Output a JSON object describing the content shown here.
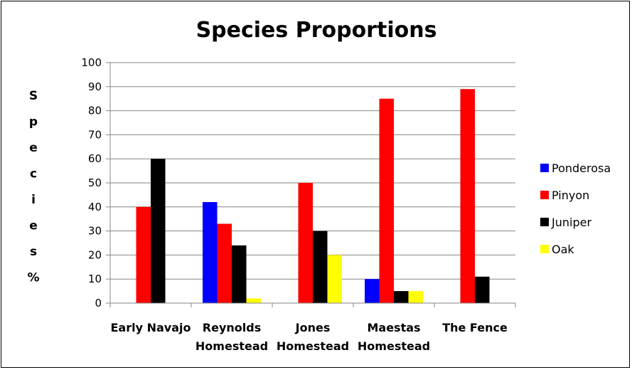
{
  "chart_data": {
    "type": "bar",
    "title": "Species Proportions",
    "ylabel_chars": [
      "S",
      "p",
      "e",
      "c",
      "i",
      "e",
      "s",
      "%"
    ],
    "categories": [
      [
        "Early Navajo"
      ],
      [
        "Reynolds",
        "Homestead"
      ],
      [
        "Jones",
        "Homestead"
      ],
      [
        "Maestas",
        "Homestead"
      ],
      [
        "The Fence"
      ]
    ],
    "series": [
      {
        "name": "Ponderosa",
        "color": "#0000FF",
        "values": [
          0,
          42,
          0,
          10,
          0
        ]
      },
      {
        "name": "Pinyon",
        "color": "#FF0000",
        "values": [
          40,
          33,
          50,
          85,
          89
        ]
      },
      {
        "name": "Juniper",
        "color": "#000000",
        "values": [
          60,
          24,
          30,
          5,
          11
        ]
      },
      {
        "name": "Oak",
        "color": "#FFFF00",
        "values": [
          0,
          2,
          20,
          5,
          0
        ]
      }
    ],
    "ylim": [
      0,
      100
    ],
    "yticks": [
      "0",
      "10",
      "20",
      "30",
      "40",
      "50",
      "60",
      "70",
      "80",
      "90",
      "100"
    ],
    "grid": true,
    "legend_position": "right"
  }
}
